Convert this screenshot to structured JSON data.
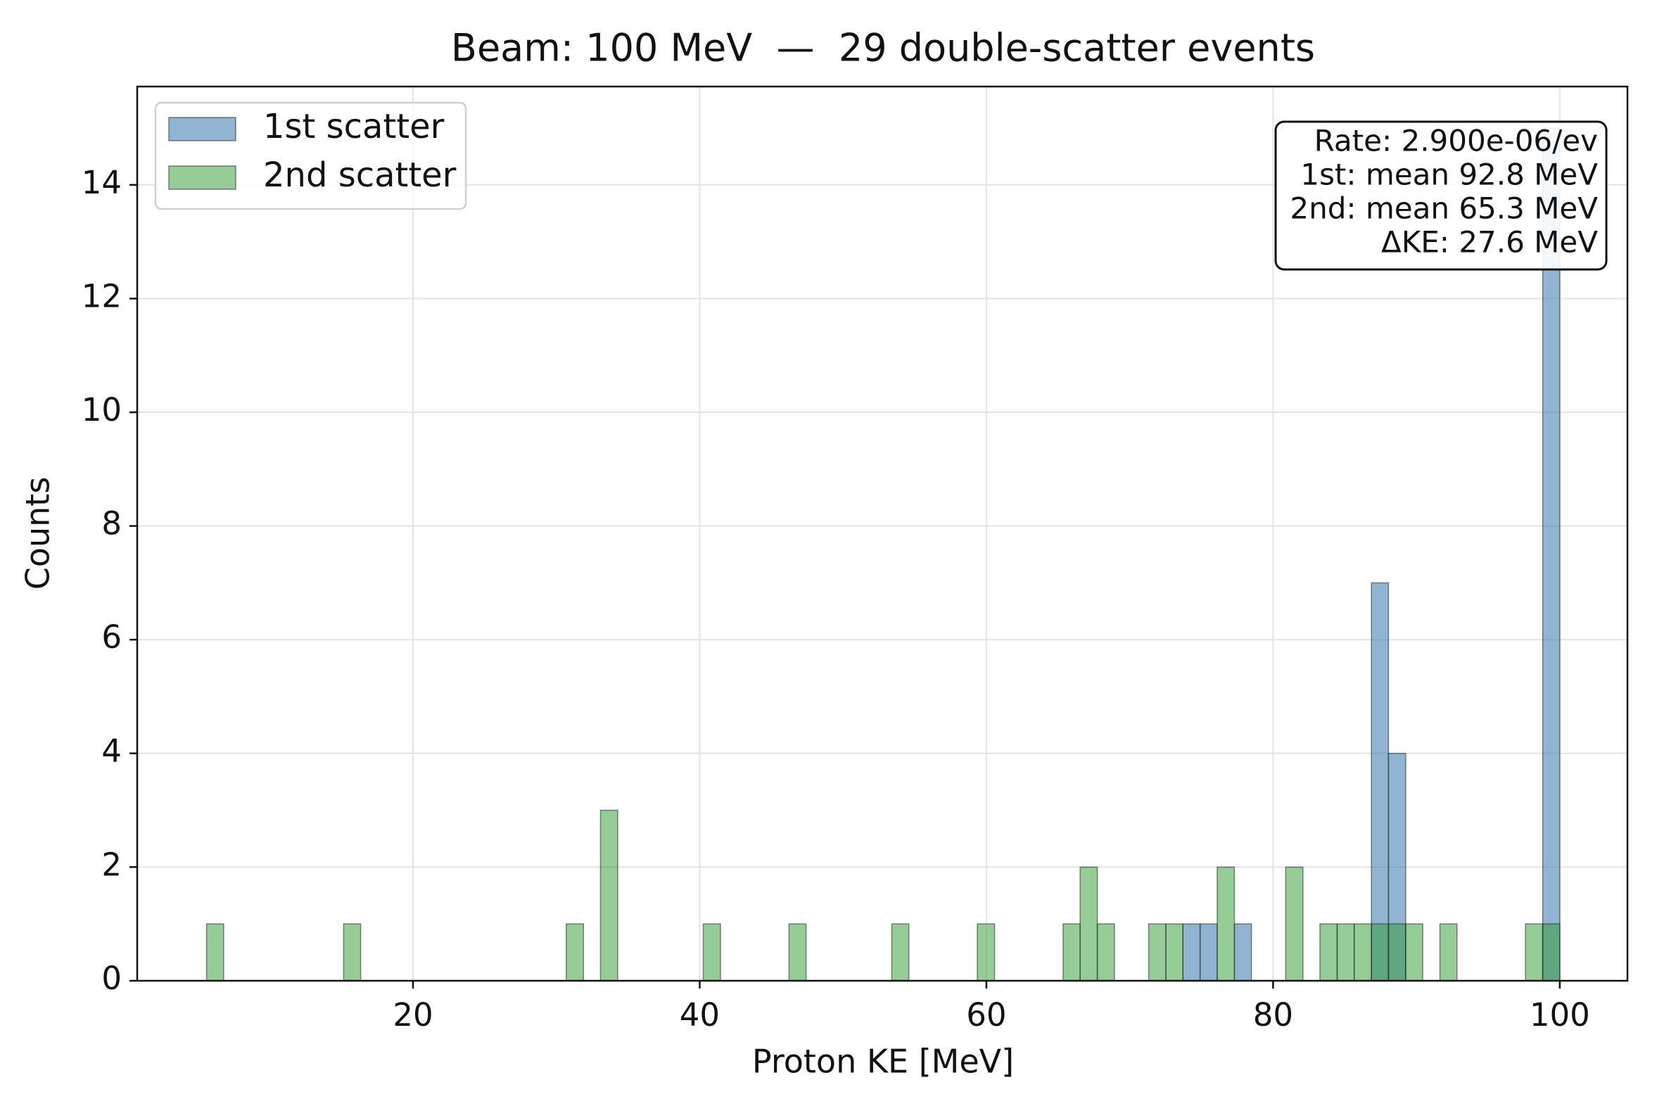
{
  "chart_data": {
    "type": "histogram",
    "title": "Beam: 100 MeV  —  29 double-scatter events",
    "xlabel": "Proton KE [MeV]",
    "ylabel": "Counts",
    "bins": [
      4.4,
      5.6,
      6.79,
      7.99,
      9.18,
      10.38,
      11.57,
      12.77,
      13.96,
      15.16,
      16.35,
      17.55,
      18.74,
      19.94,
      21.13,
      22.33,
      23.52,
      24.72,
      25.91,
      27.11,
      28.3,
      29.5,
      30.69,
      31.89,
      33.08,
      34.28,
      35.47,
      36.67,
      37.86,
      39.06,
      40.25,
      41.45,
      42.64,
      43.84,
      45.03,
      46.23,
      47.42,
      48.62,
      49.81,
      51.01,
      52.2,
      53.4,
      54.59,
      55.79,
      56.98,
      58.18,
      59.37,
      60.57,
      61.76,
      62.96,
      64.15,
      65.35,
      66.54,
      67.74,
      68.93,
      70.13,
      71.32,
      72.52,
      73.71,
      74.91,
      76.1,
      77.3,
      78.49,
      79.69,
      80.88,
      82.08,
      83.27,
      84.47,
      85.66,
      86.86,
      88.05,
      89.25,
      90.44,
      91.64,
      92.83,
      94.03,
      95.22,
      96.42,
      97.61,
      98.81,
      100.0
    ],
    "series": [
      {
        "name": "1st scatter",
        "color": "#4682b4",
        "opacity": 0.6,
        "values": [
          0,
          0,
          0,
          0,
          0,
          0,
          0,
          0,
          0,
          0,
          0,
          0,
          0,
          0,
          0,
          0,
          0,
          0,
          0,
          0,
          0,
          0,
          0,
          0,
          0,
          0,
          0,
          0,
          0,
          0,
          0,
          0,
          0,
          0,
          0,
          0,
          0,
          0,
          0,
          0,
          0,
          0,
          0,
          0,
          0,
          0,
          0,
          0,
          0,
          0,
          0,
          0,
          0,
          0,
          0,
          0,
          0,
          0,
          1,
          1,
          0,
          1,
          0,
          0,
          0,
          0,
          0,
          0,
          0,
          7,
          4,
          0,
          0,
          0,
          0,
          0,
          0,
          0,
          0,
          15
        ]
      },
      {
        "name": "2nd scatter",
        "color": "#2e9a2e",
        "opacity": 0.5,
        "values": [
          0,
          1,
          0,
          0,
          0,
          0,
          0,
          0,
          0,
          1,
          0,
          0,
          0,
          0,
          0,
          0,
          0,
          0,
          0,
          0,
          0,
          0,
          1,
          0,
          3,
          0,
          0,
          0,
          0,
          0,
          1,
          0,
          0,
          0,
          0,
          1,
          0,
          0,
          0,
          0,
          0,
          1,
          0,
          0,
          0,
          0,
          1,
          0,
          0,
          0,
          0,
          1,
          2,
          1,
          0,
          0,
          1,
          1,
          0,
          0,
          2,
          0,
          0,
          0,
          2,
          0,
          1,
          1,
          1,
          1,
          1,
          1,
          0,
          1,
          0,
          0,
          0,
          0,
          1,
          1
        ]
      }
    ],
    "xlim": [
      0.76,
      104.72
    ],
    "ylim": [
      0,
      15.73
    ],
    "xticks": [
      20,
      40,
      60,
      80,
      100
    ],
    "yticks": [
      0,
      2,
      4,
      6,
      8,
      10,
      12,
      14
    ],
    "grid": true,
    "legend": "upper left",
    "annotation": [
      "Rate: 2.900e-06/ev",
      "1st: mean 92.8 MeV",
      "2nd: mean 65.3 MeV",
      "ΔKE: 27.6 MeV"
    ]
  }
}
